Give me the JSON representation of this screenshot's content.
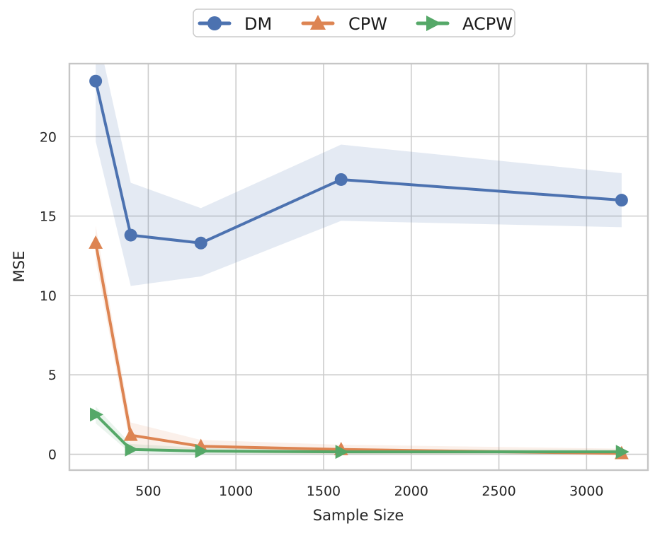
{
  "chart_data": {
    "type": "line",
    "title": "",
    "xlabel": "Sample Size",
    "ylabel": "MSE",
    "x": [
      200,
      400,
      800,
      1600,
      3200
    ],
    "xlim": [
      50,
      3350
    ],
    "ylim": [
      -1.0,
      24.6
    ],
    "xticks": [
      500,
      1000,
      1500,
      2000,
      2500,
      3000
    ],
    "yticks": [
      0,
      5,
      10,
      15,
      20
    ],
    "grid": true,
    "legend": {
      "position": "top-center",
      "entries": [
        "DM",
        "CPW",
        "ACPW"
      ]
    },
    "series": [
      {
        "name": "DM",
        "color": "#4C72B0",
        "marker": "circle",
        "values": [
          23.5,
          13.8,
          13.3,
          17.3,
          16.0
        ],
        "band_upper": [
          27.0,
          17.1,
          15.5,
          19.5,
          17.7
        ],
        "band_lower": [
          19.7,
          10.6,
          11.2,
          14.7,
          14.3
        ],
        "band_opacity": 0.15
      },
      {
        "name": "CPW",
        "color": "#DD8452",
        "marker": "triangle-up",
        "values": [
          13.3,
          1.2,
          0.5,
          0.3,
          0.05
        ],
        "band_upper": [
          14.4,
          2.0,
          0.9,
          0.6,
          0.35
        ],
        "band_lower": [
          12.2,
          0.4,
          0.1,
          0.0,
          0.0
        ],
        "band_opacity": 0.12
      },
      {
        "name": "ACPW",
        "color": "#55A868",
        "marker": "triangle-right",
        "values": [
          2.5,
          0.3,
          0.2,
          0.15,
          0.15
        ],
        "band_upper": [
          3.0,
          0.65,
          0.4,
          0.3,
          0.3
        ],
        "band_lower": [
          1.95,
          0.05,
          0.0,
          0.0,
          0.0
        ],
        "band_opacity": 0.12
      }
    ],
    "colors": {
      "grid": "#CCCCCC",
      "spine": "#C6C6C6",
      "text": "#262626",
      "background": "#FFFFFF"
    }
  }
}
